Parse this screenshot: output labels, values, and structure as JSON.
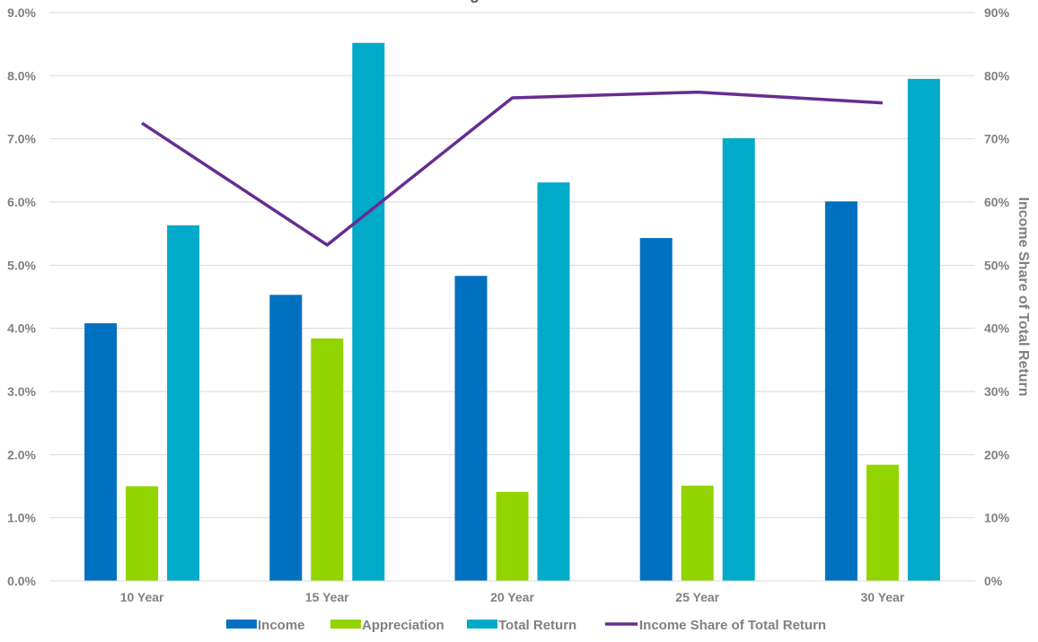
{
  "chart_data": {
    "type": "bar",
    "title": "Average Annual Returns",
    "categories": [
      "10 Year",
      "15 Year",
      "20 Year",
      "25 Year",
      "30 Year"
    ],
    "series": [
      {
        "name": "Income",
        "type": "bar",
        "axis": "left",
        "color": "#0070C0",
        "values": [
          4.08,
          4.53,
          4.83,
          5.43,
          6.01
        ]
      },
      {
        "name": "Appreciation",
        "type": "bar",
        "axis": "left",
        "color": "#92D400",
        "values": [
          1.5,
          3.84,
          1.41,
          1.51,
          1.84
        ]
      },
      {
        "name": "Total Return",
        "type": "bar",
        "axis": "left",
        "color": "#00AAC8",
        "values": [
          5.63,
          8.52,
          6.31,
          7.01,
          7.95
        ]
      },
      {
        "name": "Income Share of Total Return",
        "type": "line",
        "axis": "right",
        "color": "#662D91",
        "values": [
          72.5,
          53.2,
          76.5,
          77.4,
          75.7
        ]
      }
    ],
    "left_axis": {
      "min": 0,
      "max": 9,
      "step": 1,
      "ticks": [
        "0.0%",
        "1.0%",
        "2.0%",
        "3.0%",
        "4.0%",
        "5.0%",
        "6.0%",
        "7.0%",
        "8.0%",
        "9.0%"
      ]
    },
    "right_axis": {
      "min": 0,
      "max": 90,
      "step": 10,
      "label": "Income Share of Total Return",
      "ticks": [
        "0%",
        "10%",
        "20%",
        "30%",
        "40%",
        "50%",
        "60%",
        "70%",
        "80%",
        "90%"
      ]
    },
    "legend_position": "bottom",
    "grid": true
  }
}
